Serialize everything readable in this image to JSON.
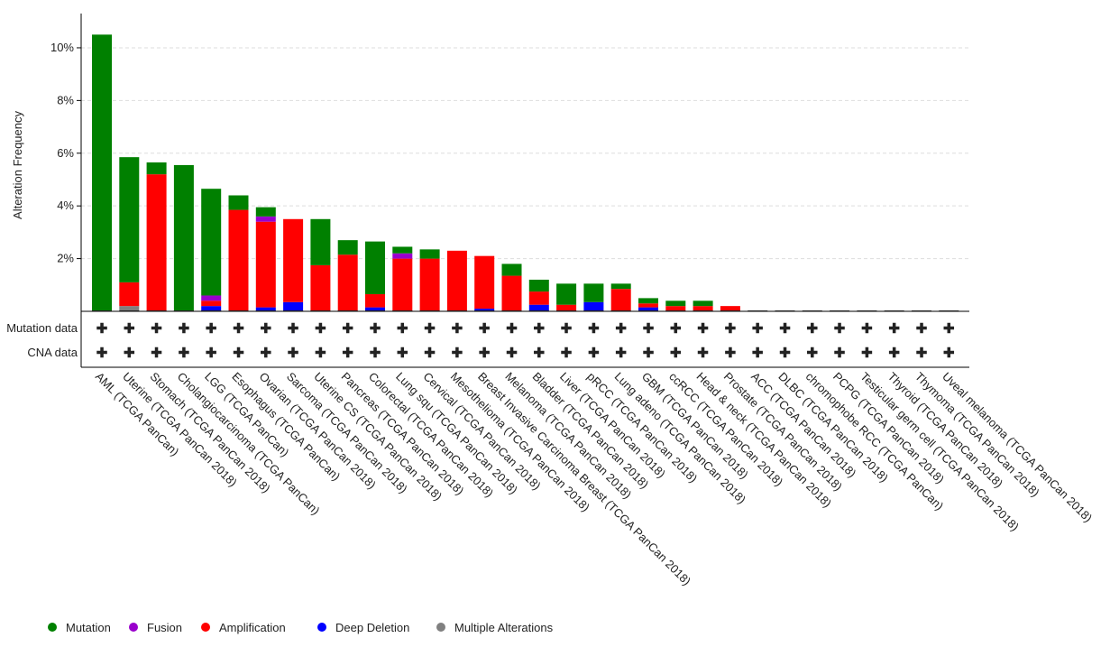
{
  "chart_data": {
    "type": "bar",
    "stacked": true,
    "ylabel": "Alteration Frequency",
    "ylim": [
      0,
      11.3
    ],
    "yticks": [
      2,
      4,
      6,
      8,
      10
    ],
    "ytick_labels": [
      "2%",
      "4%",
      "6%",
      "8%",
      "10%"
    ],
    "grid": true,
    "legend_position": "bottom-left",
    "track_labels": [
      "Mutation data",
      "CNA data"
    ],
    "track_marker": "✚",
    "categories": [
      "AML (TCGA PanCan)",
      "Uterine (TCGA PanCan 2018)",
      "Stomach (TCGA PanCan 2018)",
      "Cholangiocarcinoma (TCGA PanCan)",
      "LGG (TCGA PanCan)",
      "Esophagus (TCGA PanCan)",
      "Ovarian (TCGA PanCan 2018)",
      "Sarcoma (TCGA PanCan 2018)",
      "Uterine CS (TCGA PanCan 2018)",
      "Pancreas (TCGA PanCan 2018)",
      "Colorectal (TCGA PanCan 2018)",
      "Lung squ (TCGA PanCan 2018)",
      "Cervical (TCGA PanCan 2018)",
      "Mesothelioma (TCGA PanCan 2018)",
      "Breast Invasive Carcinoma Breast (TCGA PanCan 2018)",
      "Melanoma (TCGA PanCan 2018)",
      "Bladder (TCGA PanCan 2018)",
      "Liver (TCGA PanCan 2018)",
      "pRCC (TCGA PanCan 2018)",
      "Lung adeno (TCGA PanCan 2018)",
      "GBM (TCGA PanCan 2018)",
      "ccRCC (TCGA PanCan 2018)",
      "Head & neck (TCGA PanCan 2018)",
      "Prostate (TCGA PanCan 2018)",
      "ACC (TCGA PanCan 2018)",
      "DLBC (TCGA PanCan 2018)",
      "chromophobe RCC (TCGA PanCan)",
      "PCPG (TCGA PanCan 2018)",
      "Testicular germ cell (TCGA PanCan 2018)",
      "Thyroid (TCGA PanCan 2018)",
      "Thymoma (TCGA PanCan 2018)",
      "Uveal melanoma (TCGA PanCan 2018)"
    ],
    "series": [
      {
        "name": "Multiple Alterations",
        "color": "#808080",
        "values": [
          0,
          0.2,
          0,
          0,
          0,
          0,
          0,
          0,
          0,
          0,
          0,
          0,
          0,
          0,
          0,
          0,
          0,
          0,
          0,
          0,
          0,
          0,
          0,
          0,
          0,
          0,
          0,
          0,
          0,
          0,
          0,
          0
        ]
      },
      {
        "name": "Deep Deletion",
        "color": "#0000ff",
        "values": [
          0,
          0,
          0,
          0,
          0.2,
          0,
          0.15,
          0.35,
          0,
          0,
          0.15,
          0,
          0,
          0,
          0.1,
          0,
          0.25,
          0,
          0.35,
          0,
          0.15,
          0,
          0,
          0,
          0,
          0,
          0,
          0,
          0,
          0,
          0,
          0
        ]
      },
      {
        "name": "Amplification",
        "color": "#ff0000",
        "values": [
          0,
          0.9,
          5.2,
          0,
          0.2,
          3.85,
          3.25,
          3.15,
          1.75,
          2.15,
          0.5,
          2.0,
          2.0,
          2.3,
          2.0,
          1.35,
          0.5,
          0.25,
          0,
          0.85,
          0.15,
          0.2,
          0.2,
          0.2,
          0,
          0,
          0,
          0,
          0,
          0,
          0,
          0
        ]
      },
      {
        "name": "Fusion",
        "color": "#9900cc",
        "values": [
          0,
          0,
          0,
          0,
          0.2,
          0,
          0.2,
          0,
          0,
          0,
          0,
          0.2,
          0,
          0,
          0,
          0,
          0,
          0,
          0,
          0,
          0,
          0,
          0,
          0,
          0,
          0,
          0,
          0,
          0,
          0,
          0,
          0
        ]
      },
      {
        "name": "Mutation",
        "color": "#008000",
        "values": [
          10.5,
          4.75,
          0.45,
          5.55,
          4.05,
          0.55,
          0.35,
          0,
          1.75,
          0.55,
          2.0,
          0.25,
          0.35,
          0,
          0,
          0.45,
          0.45,
          0.8,
          0.7,
          0.2,
          0.2,
          0.2,
          0.2,
          0,
          0,
          0,
          0,
          0,
          0,
          0,
          0,
          0
        ]
      }
    ],
    "legend": [
      {
        "name": "Mutation",
        "color": "#008000"
      },
      {
        "name": "Fusion",
        "color": "#9900cc"
      },
      {
        "name": "Amplification",
        "color": "#ff0000"
      },
      {
        "name": "Deep Deletion",
        "color": "#0000ff"
      },
      {
        "name": "Multiple Alterations",
        "color": "#808080"
      }
    ]
  }
}
